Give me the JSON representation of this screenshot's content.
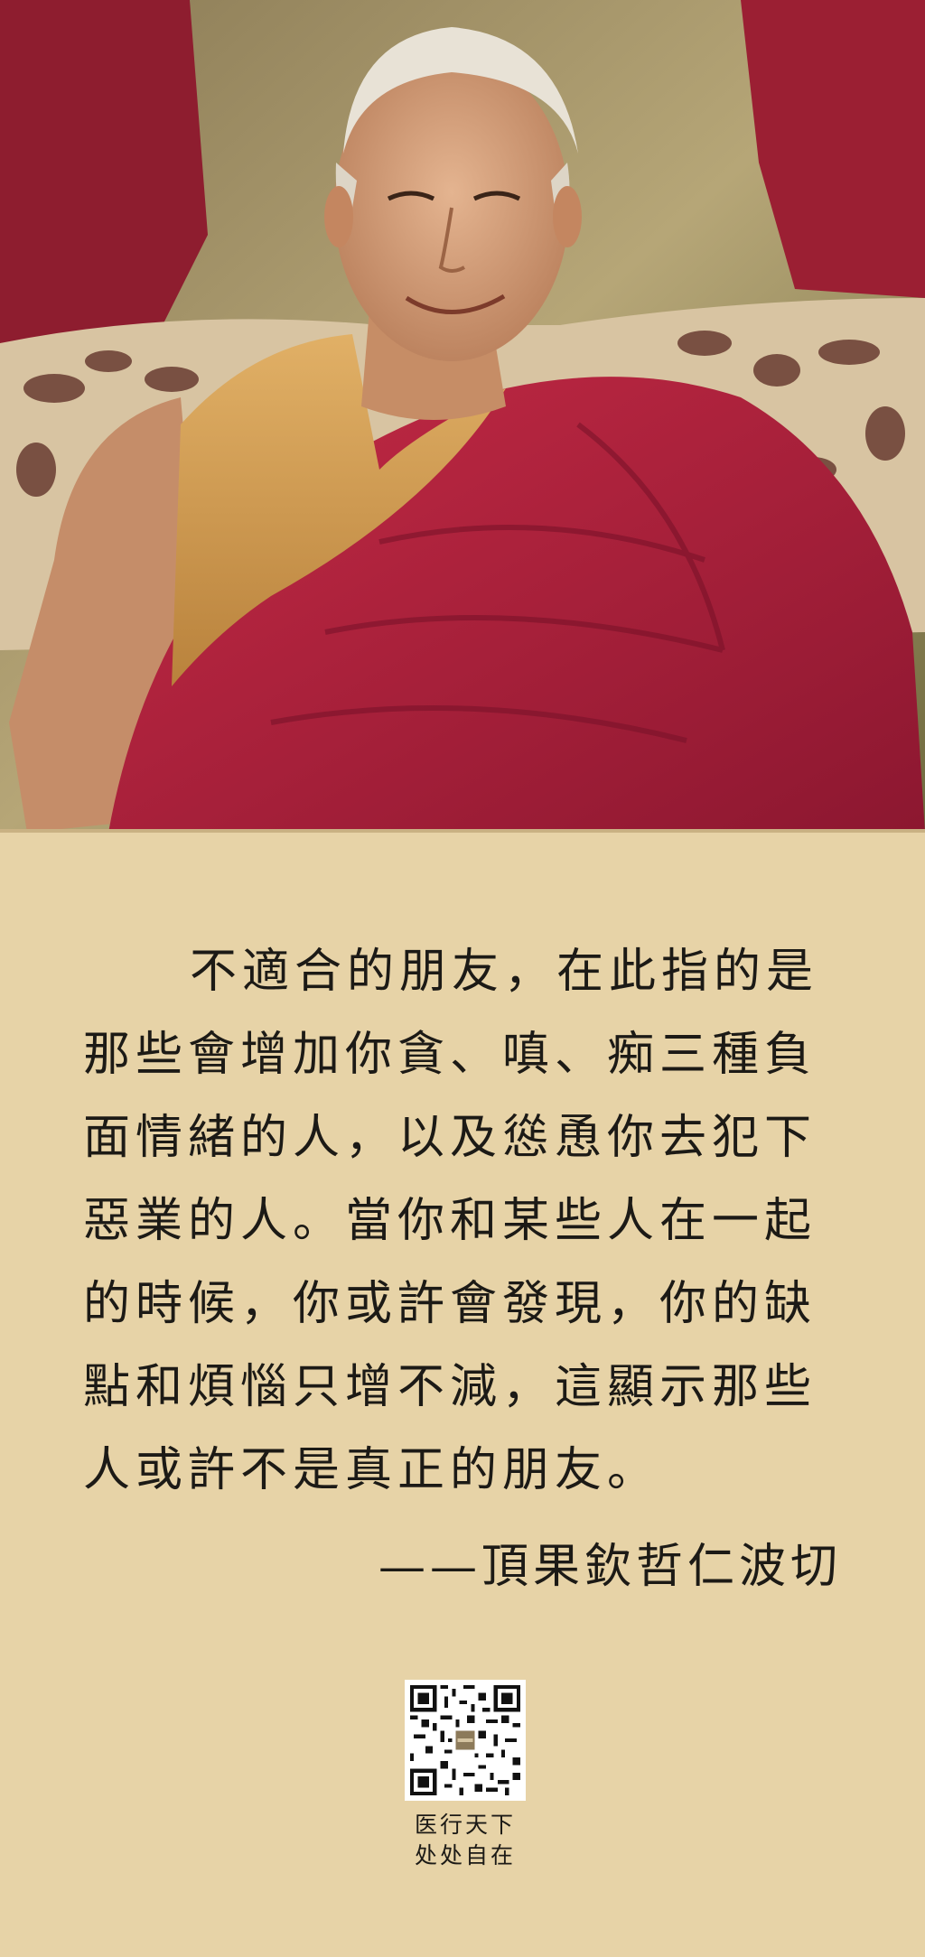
{
  "colors": {
    "background": "#e7d3a7",
    "text": "#1c1a16",
    "robe": "#b3213c",
    "shirt": "#d9a454"
  },
  "photo": {
    "subject": "elderly monk portrait"
  },
  "quote": {
    "lines": [
      "不適合的朋友，在此指的是",
      "那些會增加你貪、嗔、痴三種負",
      "面情緒的人，以及慫恿你去犯下",
      "惡業的人。當你和某些人在一起",
      "的時候，你或許會發現，你的缺",
      "點和煩惱只增不減，這顯示那些",
      "人或許不是真正的朋友。"
    ],
    "attribution": "——頂果欽哲仁波切"
  },
  "footer": {
    "qr_icon": "qr-code-icon",
    "caption_line1": "医行天下",
    "caption_line2": "处处自在"
  }
}
